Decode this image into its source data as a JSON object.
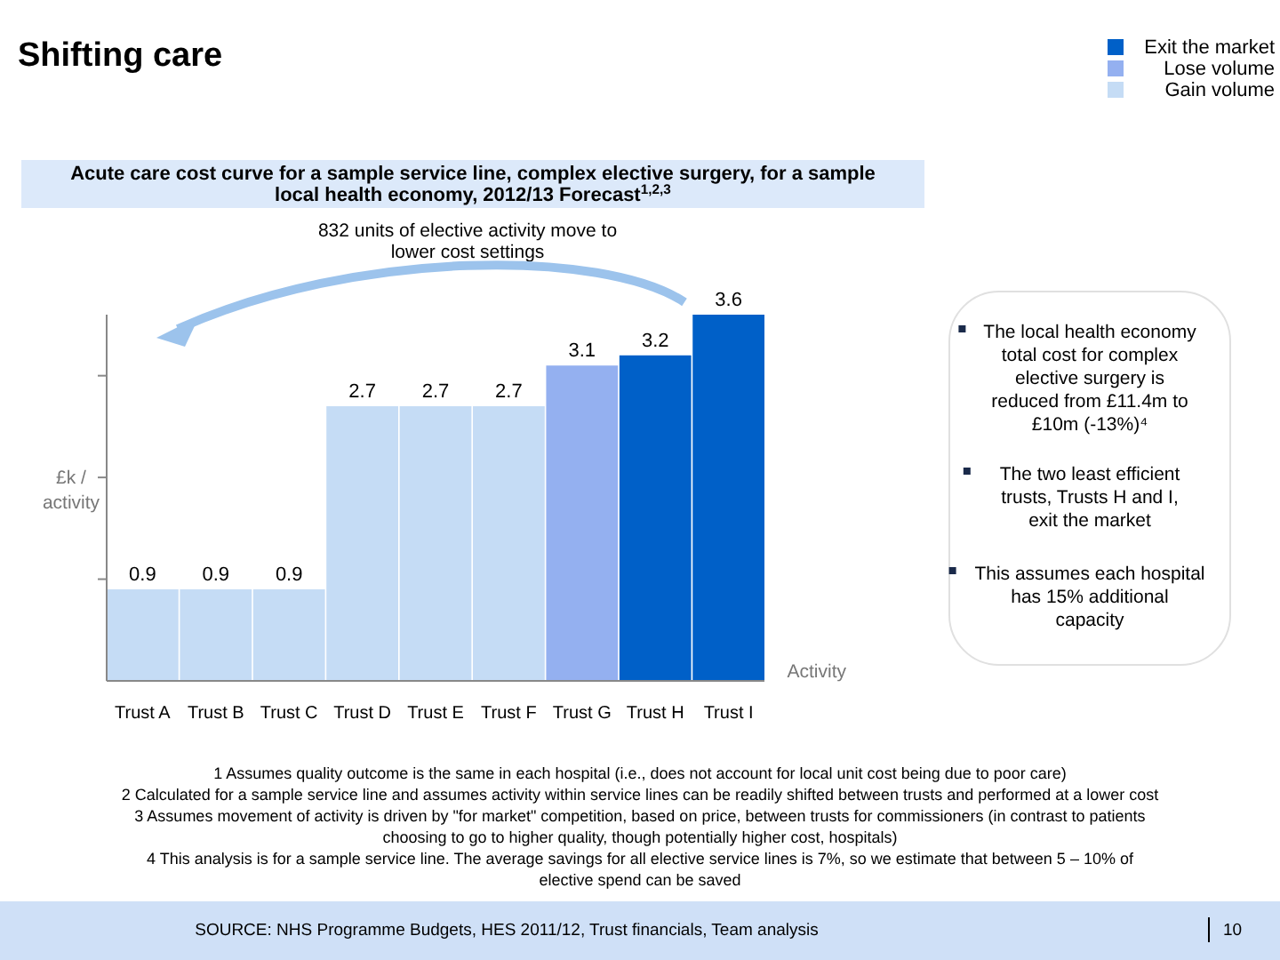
{
  "chart_data": {
    "type": "bar",
    "title": "Shifting care",
    "subtitle": "Acute care cost curve for a sample service line, complex elective surgery, for a sample local health economy, 2012/13 Forecast$^{1,2,3}$",
    "xlabel": "Activity",
    "ylabel": "£k / activity",
    "categories": [
      "Trust A",
      "Trust B",
      "Trust C",
      "Trust D",
      "Trust E",
      "Trust F",
      "Trust G",
      "Trust H",
      "Trust I"
    ],
    "series": [
      {
        "name": "Exit the market",
        "color": "#0060c8",
        "values": [
          null,
          null,
          null,
          null,
          null,
          null,
          null,
          3.2,
          3.6
        ]
      },
      {
        "name": "Lose volume",
        "color": "#94b0f0",
        "values": [
          null,
          null,
          null,
          null,
          null,
          null,
          3.1,
          null,
          null
        ]
      },
      {
        "name": "Gain volume",
        "color": "#c5dcf5",
        "values": [
          0.9,
          0.9,
          0.9,
          2.7,
          2.7,
          2.7,
          null,
          null,
          null
        ]
      }
    ],
    "ylim": [
      0,
      3.6
    ],
    "yticks": [
      {
        "value": 1,
        "label": null
      },
      {
        "value": 2,
        "label": null
      },
      {
        "value": 3,
        "label": null
      }
    ],
    "data_labels": true,
    "legend": "top right",
    "grid": false,
    "annotations": [
      "832 units of elective activity move to lower cost settings",
      "The local health economy total cost for complex elective surgery is reduced from £11.4m to £10m (-13%)⁴",
      "The two least efficient trusts, Trusts H and I, exit the market",
      "This assumes each hospital has 15% additional capacity",
      "1 Assumes quality outcome is the same in each hospital (i.e., does not account for local unit cost being due to poor care)",
      "2 Calculated for a sample service line and assumes activity within service lines can be readily shifted between trusts and performed at a lower cost",
      "3 Assumes movement of activity is driven by \"for market\" competition, based on price, between trusts for commissioners (in contrast to patients choosing to go to higher quality, though potentially higher cost, hospitals)",
      "4 This analysis is for a sample service line. The average savings for all elective service lines is 7%, so we estimate that between 5 – 10% of elective spend can be saved",
      "SOURCE: NHS Programme Budgets, HES 2011/12, Trust financials, Team analysis",
      "10"
    ]
  }
}
